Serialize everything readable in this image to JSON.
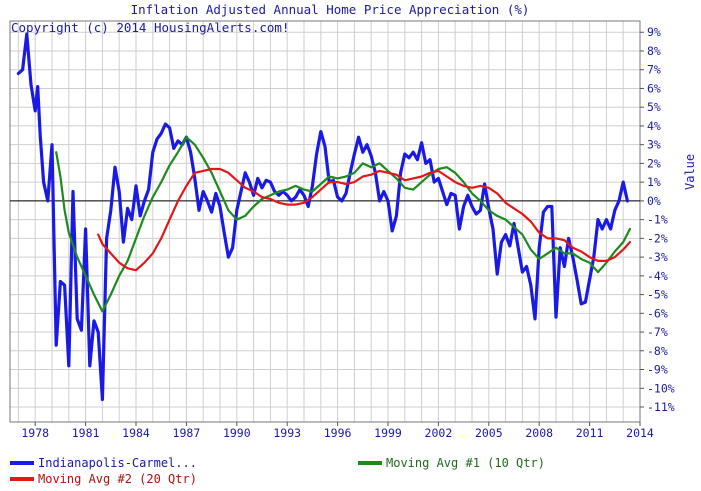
{
  "chart_data": {
    "type": "line",
    "title": "Inflation Adjusted Annual Home Price Appreciation (%)",
    "annotation": "Copyright (c) 2014 HousingAlerts.com!",
    "ylabel": "Value",
    "xlabel": "",
    "xlim": [
      1976.5,
      2014
    ],
    "ylim": [
      -11.8,
      9.6
    ],
    "x_ticks": [
      1978,
      1981,
      1984,
      1987,
      1990,
      1993,
      1996,
      1999,
      2002,
      2005,
      2008,
      2011,
      2014
    ],
    "y_ticks": [
      "9%",
      "8%",
      "7%",
      "6%",
      "5%",
      "4%",
      "3%",
      "2%",
      "1%",
      "0%",
      "-1%",
      "-2%",
      "-3%",
      "-4%",
      "-5%",
      "-6%",
      "-7%",
      "-8%",
      "-9%",
      "-10%",
      "-11%"
    ],
    "grid": true,
    "legend_placement": "bottom",
    "colors": {
      "text": "#1a1aa6",
      "grid": "#c8c8c8",
      "zero_line": "#000000"
    },
    "series": [
      {
        "name": "Indianapolis-Carmel...",
        "color": "#1a1ae6",
        "points": [
          [
            1977.0,
            6.8
          ],
          [
            1977.25,
            7.0
          ],
          [
            1977.5,
            8.9
          ],
          [
            1977.75,
            6.2
          ],
          [
            1978.0,
            4.8
          ],
          [
            1978.15,
            6.1
          ],
          [
            1978.3,
            3.5
          ],
          [
            1978.5,
            1.0
          ],
          [
            1978.75,
            0.0
          ],
          [
            1979.0,
            3.0
          ],
          [
            1979.25,
            -7.7
          ],
          [
            1979.5,
            -4.3
          ],
          [
            1979.75,
            -4.5
          ],
          [
            1980.0,
            -8.8
          ],
          [
            1980.25,
            0.5
          ],
          [
            1980.5,
            -6.3
          ],
          [
            1980.75,
            -6.9
          ],
          [
            1981.0,
            -1.5
          ],
          [
            1981.25,
            -8.8
          ],
          [
            1981.5,
            -6.4
          ],
          [
            1981.75,
            -7.0
          ],
          [
            1982.0,
            -10.6
          ],
          [
            1982.25,
            -2.0
          ],
          [
            1982.5,
            -0.5
          ],
          [
            1982.75,
            1.8
          ],
          [
            1983.0,
            0.5
          ],
          [
            1983.25,
            -2.2
          ],
          [
            1983.5,
            -0.4
          ],
          [
            1983.75,
            -1.0
          ],
          [
            1984.0,
            0.8
          ],
          [
            1984.25,
            -0.8
          ],
          [
            1984.5,
            0.0
          ],
          [
            1984.75,
            0.6
          ],
          [
            1985.0,
            2.6
          ],
          [
            1985.25,
            3.3
          ],
          [
            1985.5,
            3.6
          ],
          [
            1985.75,
            4.1
          ],
          [
            1986.0,
            3.9
          ],
          [
            1986.25,
            2.8
          ],
          [
            1986.5,
            3.2
          ],
          [
            1986.75,
            3.0
          ],
          [
            1987.0,
            3.4
          ],
          [
            1987.25,
            2.6
          ],
          [
            1987.5,
            1.2
          ],
          [
            1987.75,
            -0.5
          ],
          [
            1988.0,
            0.5
          ],
          [
            1988.25,
            0.0
          ],
          [
            1988.5,
            -0.6
          ],
          [
            1988.75,
            0.4
          ],
          [
            1989.0,
            -0.3
          ],
          [
            1989.25,
            -1.7
          ],
          [
            1989.5,
            -3.0
          ],
          [
            1989.75,
            -2.5
          ],
          [
            1990.0,
            -0.5
          ],
          [
            1990.25,
            0.5
          ],
          [
            1990.5,
            1.5
          ],
          [
            1990.75,
            1.0
          ],
          [
            1991.0,
            0.3
          ],
          [
            1991.25,
            1.2
          ],
          [
            1991.5,
            0.7
          ],
          [
            1991.75,
            1.1
          ],
          [
            1992.0,
            1.0
          ],
          [
            1992.25,
            0.5
          ],
          [
            1992.5,
            0.3
          ],
          [
            1992.75,
            0.5
          ],
          [
            1993.0,
            0.3
          ],
          [
            1993.25,
            0.0
          ],
          [
            1993.5,
            0.2
          ],
          [
            1993.75,
            0.6
          ],
          [
            1994.0,
            0.3
          ],
          [
            1994.25,
            -0.3
          ],
          [
            1994.5,
            0.8
          ],
          [
            1994.75,
            2.5
          ],
          [
            1995.0,
            3.7
          ],
          [
            1995.25,
            2.9
          ],
          [
            1995.5,
            1.0
          ],
          [
            1995.75,
            1.1
          ],
          [
            1996.0,
            0.2
          ],
          [
            1996.25,
            0.0
          ],
          [
            1996.5,
            0.4
          ],
          [
            1996.75,
            1.5
          ],
          [
            1997.0,
            2.5
          ],
          [
            1997.25,
            3.4
          ],
          [
            1997.5,
            2.6
          ],
          [
            1997.75,
            3.0
          ],
          [
            1998.0,
            2.4
          ],
          [
            1998.25,
            1.5
          ],
          [
            1998.5,
            0.0
          ],
          [
            1998.75,
            0.5
          ],
          [
            1999.0,
            0.0
          ],
          [
            1999.25,
            -1.6
          ],
          [
            1999.5,
            -0.8
          ],
          [
            1999.75,
            1.5
          ],
          [
            2000.0,
            2.5
          ],
          [
            2000.25,
            2.3
          ],
          [
            2000.5,
            2.6
          ],
          [
            2000.75,
            2.2
          ],
          [
            2001.0,
            3.1
          ],
          [
            2001.25,
            2.0
          ],
          [
            2001.5,
            2.2
          ],
          [
            2001.75,
            1.0
          ],
          [
            2002.0,
            1.2
          ],
          [
            2002.25,
            0.5
          ],
          [
            2002.5,
            -0.2
          ],
          [
            2002.75,
            0.4
          ],
          [
            2003.0,
            0.3
          ],
          [
            2003.25,
            -1.5
          ],
          [
            2003.5,
            -0.3
          ],
          [
            2003.75,
            0.3
          ],
          [
            2004.0,
            -0.3
          ],
          [
            2004.25,
            -0.7
          ],
          [
            2004.5,
            -0.5
          ],
          [
            2004.75,
            0.9
          ],
          [
            2005.0,
            -0.4
          ],
          [
            2005.25,
            -1.5
          ],
          [
            2005.5,
            -3.9
          ],
          [
            2005.75,
            -2.2
          ],
          [
            2006.0,
            -1.8
          ],
          [
            2006.25,
            -2.4
          ],
          [
            2006.5,
            -1.2
          ],
          [
            2006.75,
            -2.5
          ],
          [
            2007.0,
            -3.8
          ],
          [
            2007.25,
            -3.5
          ],
          [
            2007.5,
            -4.5
          ],
          [
            2007.75,
            -6.3
          ],
          [
            2008.0,
            -2.5
          ],
          [
            2008.25,
            -0.6
          ],
          [
            2008.5,
            -0.3
          ],
          [
            2008.75,
            -0.3
          ],
          [
            2009.0,
            -6.2
          ],
          [
            2009.25,
            -2.5
          ],
          [
            2009.5,
            -3.5
          ],
          [
            2009.75,
            -2.0
          ],
          [
            2010.0,
            -3.0
          ],
          [
            2010.25,
            -4.2
          ],
          [
            2010.5,
            -5.5
          ],
          [
            2010.75,
            -5.4
          ],
          [
            2011.0,
            -4.2
          ],
          [
            2011.25,
            -3.0
          ],
          [
            2011.5,
            -1.0
          ],
          [
            2011.75,
            -1.5
          ],
          [
            2012.0,
            -1.0
          ],
          [
            2012.25,
            -1.5
          ],
          [
            2012.5,
            -0.5
          ],
          [
            2012.75,
            0.0
          ],
          [
            2013.0,
            1.0
          ],
          [
            2013.25,
            0.0
          ]
        ]
      },
      {
        "name": "Moving Avg #1 (10 Qtr)",
        "color": "#1e8a1e",
        "points": [
          [
            1979.25,
            2.6
          ],
          [
            1979.5,
            1.3
          ],
          [
            1979.75,
            -0.5
          ],
          [
            1980.0,
            -1.7
          ],
          [
            1980.5,
            -3.0
          ],
          [
            1981.0,
            -4.0
          ],
          [
            1981.5,
            -5.0
          ],
          [
            1982.0,
            -5.9
          ],
          [
            1982.5,
            -5.0
          ],
          [
            1983.0,
            -4.0
          ],
          [
            1983.5,
            -3.2
          ],
          [
            1984.0,
            -2.0
          ],
          [
            1984.5,
            -0.8
          ],
          [
            1985.0,
            0.2
          ],
          [
            1985.5,
            1.0
          ],
          [
            1986.0,
            1.9
          ],
          [
            1986.5,
            2.6
          ],
          [
            1987.0,
            3.4
          ],
          [
            1987.5,
            3.0
          ],
          [
            1988.0,
            2.3
          ],
          [
            1988.5,
            1.5
          ],
          [
            1989.0,
            0.5
          ],
          [
            1989.5,
            -0.5
          ],
          [
            1990.0,
            -1.0
          ],
          [
            1990.5,
            -0.8
          ],
          [
            1991.0,
            -0.3
          ],
          [
            1991.5,
            0.1
          ],
          [
            1992.0,
            0.3
          ],
          [
            1992.5,
            0.5
          ],
          [
            1993.0,
            0.6
          ],
          [
            1993.5,
            0.8
          ],
          [
            1994.0,
            0.6
          ],
          [
            1994.5,
            0.5
          ],
          [
            1995.0,
            0.9
          ],
          [
            1995.5,
            1.3
          ],
          [
            1996.0,
            1.2
          ],
          [
            1996.5,
            1.3
          ],
          [
            1997.0,
            1.5
          ],
          [
            1997.5,
            2.0
          ],
          [
            1998.0,
            1.8
          ],
          [
            1998.5,
            2.0
          ],
          [
            1999.0,
            1.6
          ],
          [
            1999.5,
            1.2
          ],
          [
            2000.0,
            0.7
          ],
          [
            2000.5,
            0.6
          ],
          [
            2001.0,
            1.0
          ],
          [
            2001.5,
            1.4
          ],
          [
            2002.0,
            1.7
          ],
          [
            2002.5,
            1.8
          ],
          [
            2003.0,
            1.5
          ],
          [
            2003.5,
            1.0
          ],
          [
            2004.0,
            0.4
          ],
          [
            2004.5,
            0.0
          ],
          [
            2005.0,
            -0.5
          ],
          [
            2005.5,
            -0.8
          ],
          [
            2006.0,
            -1.0
          ],
          [
            2006.5,
            -1.4
          ],
          [
            2007.0,
            -1.8
          ],
          [
            2007.5,
            -2.6
          ],
          [
            2008.0,
            -3.1
          ],
          [
            2008.5,
            -2.8
          ],
          [
            2009.0,
            -2.5
          ],
          [
            2009.5,
            -2.8
          ],
          [
            2010.0,
            -2.8
          ],
          [
            2010.5,
            -3.1
          ],
          [
            2011.0,
            -3.3
          ],
          [
            2011.5,
            -3.8
          ],
          [
            2012.0,
            -3.3
          ],
          [
            2012.5,
            -2.7
          ],
          [
            2013.0,
            -2.2
          ],
          [
            2013.4,
            -1.5
          ]
        ]
      },
      {
        "name": "Moving Avg #2 (20 Qtr)",
        "color": "#e01818",
        "points": [
          [
            1981.75,
            -1.8
          ],
          [
            1982.0,
            -2.3
          ],
          [
            1982.5,
            -2.8
          ],
          [
            1983.0,
            -3.3
          ],
          [
            1983.5,
            -3.6
          ],
          [
            1984.0,
            -3.7
          ],
          [
            1984.5,
            -3.3
          ],
          [
            1985.0,
            -2.8
          ],
          [
            1985.5,
            -2.0
          ],
          [
            1986.0,
            -1.0
          ],
          [
            1986.5,
            0.0
          ],
          [
            1987.0,
            0.8
          ],
          [
            1987.5,
            1.5
          ],
          [
            1988.0,
            1.6
          ],
          [
            1988.5,
            1.7
          ],
          [
            1989.0,
            1.7
          ],
          [
            1989.5,
            1.5
          ],
          [
            1990.0,
            1.1
          ],
          [
            1990.5,
            0.7
          ],
          [
            1991.0,
            0.5
          ],
          [
            1991.5,
            0.2
          ],
          [
            1992.0,
            0.1
          ],
          [
            1992.5,
            -0.1
          ],
          [
            1993.0,
            -0.2
          ],
          [
            1993.5,
            -0.2
          ],
          [
            1994.0,
            -0.1
          ],
          [
            1994.5,
            0.2
          ],
          [
            1995.0,
            0.6
          ],
          [
            1995.5,
            1.0
          ],
          [
            1996.0,
            1.0
          ],
          [
            1996.5,
            0.9
          ],
          [
            1997.0,
            1.0
          ],
          [
            1997.5,
            1.3
          ],
          [
            1998.0,
            1.4
          ],
          [
            1998.5,
            1.6
          ],
          [
            1999.0,
            1.5
          ],
          [
            1999.5,
            1.4
          ],
          [
            2000.0,
            1.1
          ],
          [
            2000.5,
            1.2
          ],
          [
            2001.0,
            1.3
          ],
          [
            2001.5,
            1.5
          ],
          [
            2002.0,
            1.6
          ],
          [
            2002.5,
            1.3
          ],
          [
            2003.0,
            1.0
          ],
          [
            2003.5,
            0.8
          ],
          [
            2004.0,
            0.7
          ],
          [
            2004.5,
            0.8
          ],
          [
            2005.0,
            0.7
          ],
          [
            2005.5,
            0.4
          ],
          [
            2006.0,
            -0.1
          ],
          [
            2006.5,
            -0.4
          ],
          [
            2007.0,
            -0.7
          ],
          [
            2007.5,
            -1.1
          ],
          [
            2008.0,
            -1.7
          ],
          [
            2008.5,
            -2.0
          ],
          [
            2009.0,
            -2.0
          ],
          [
            2009.5,
            -2.1
          ],
          [
            2010.0,
            -2.5
          ],
          [
            2010.5,
            -2.7
          ],
          [
            2011.0,
            -3.0
          ],
          [
            2011.5,
            -3.2
          ],
          [
            2012.0,
            -3.2
          ],
          [
            2012.5,
            -3.0
          ],
          [
            2013.0,
            -2.6
          ],
          [
            2013.4,
            -2.2
          ]
        ]
      }
    ]
  }
}
